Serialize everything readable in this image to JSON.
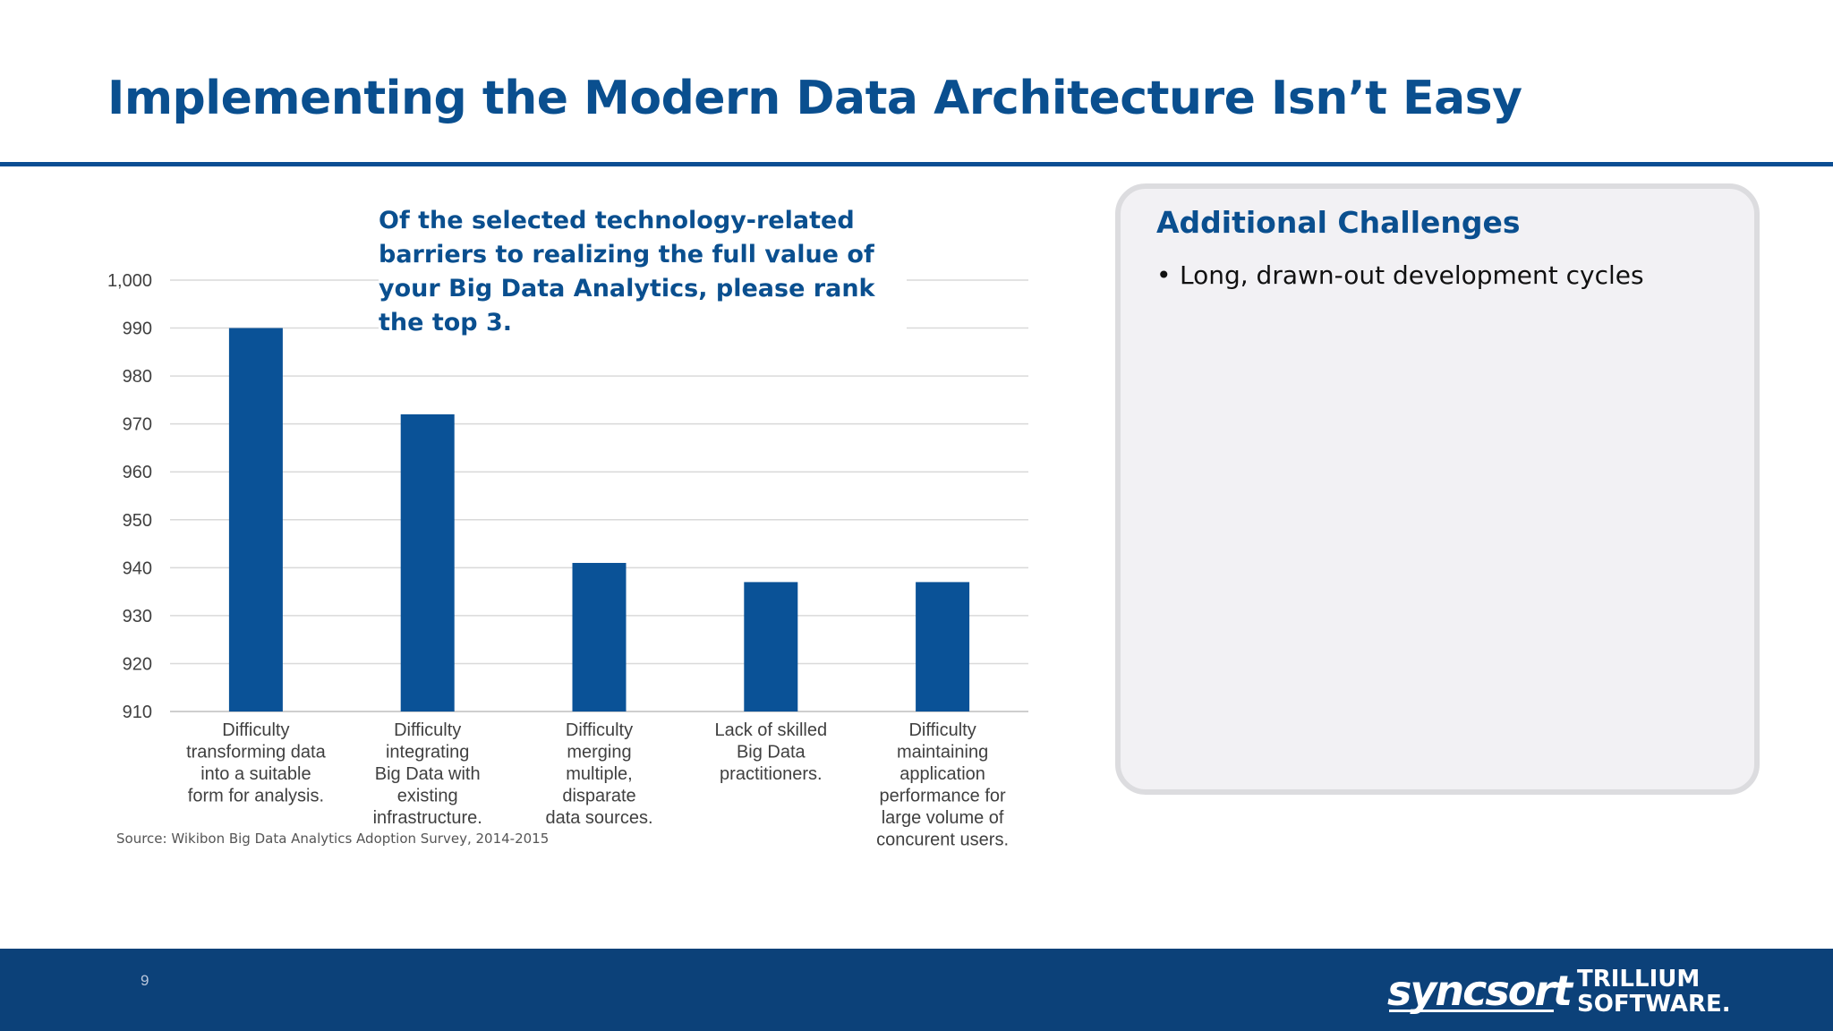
{
  "slide": {
    "title": "Implementing the Modern Data Architecture Isn’t Easy",
    "page_number": "9"
  },
  "chart_data": {
    "type": "bar",
    "title": "Of the selected technology-related barriers to realizing the full value of your Big Data Analytics, please rank the top 3.",
    "source": "Source: Wikibon Big Data Analytics Adoption Survey, 2014-2015",
    "categories": [
      "Difficulty transforming data into a suitable form for analysis.",
      "Difficulty integrating Big Data with existing infrastructure.",
      "Difficulty merging multiple, disparate data sources.",
      "Lack of skilled Big Data practitioners.",
      "Difficulty maintaining application performance for large volume of concurent users."
    ],
    "category_lines": [
      [
        "Difficulty",
        "transforming data",
        "into a suitable",
        "form for analysis."
      ],
      [
        "Difficulty",
        "integrating",
        "Big Data with",
        "existing",
        "infrastructure."
      ],
      [
        "Difficulty",
        "merging",
        "multiple,",
        "disparate",
        "data sources."
      ],
      [
        "Lack of skilled",
        "Big Data",
        "practitioners."
      ],
      [
        "Difficulty",
        "maintaining",
        "application",
        "performance for",
        "large volume of",
        "concurent users."
      ]
    ],
    "values": [
      990,
      972,
      941,
      937,
      937
    ],
    "ylim": [
      910,
      1000
    ],
    "yticks": [
      910,
      920,
      930,
      940,
      950,
      960,
      970,
      980,
      990,
      1000
    ],
    "ytick_labels": [
      "910",
      "920",
      "930",
      "940",
      "950",
      "960",
      "970",
      "980",
      "990",
      "1,000"
    ],
    "xlabel": "",
    "ylabel": "",
    "grid": true,
    "legend": "none",
    "bar_color": "#0a5297"
  },
  "panel": {
    "title": "Additional Challenges",
    "bullets": [
      "Long, drawn-out development cycles"
    ]
  },
  "branding": {
    "logo_primary": "syncsort",
    "logo_secondary_line1": "TRILLIUM",
    "logo_secondary_line2": "SOFTWARE."
  },
  "colors": {
    "title": "#0a4f8f",
    "footer": "#0c4179",
    "panel_background": "#f2f1f4",
    "panel_border": "#dcdcdf"
  }
}
